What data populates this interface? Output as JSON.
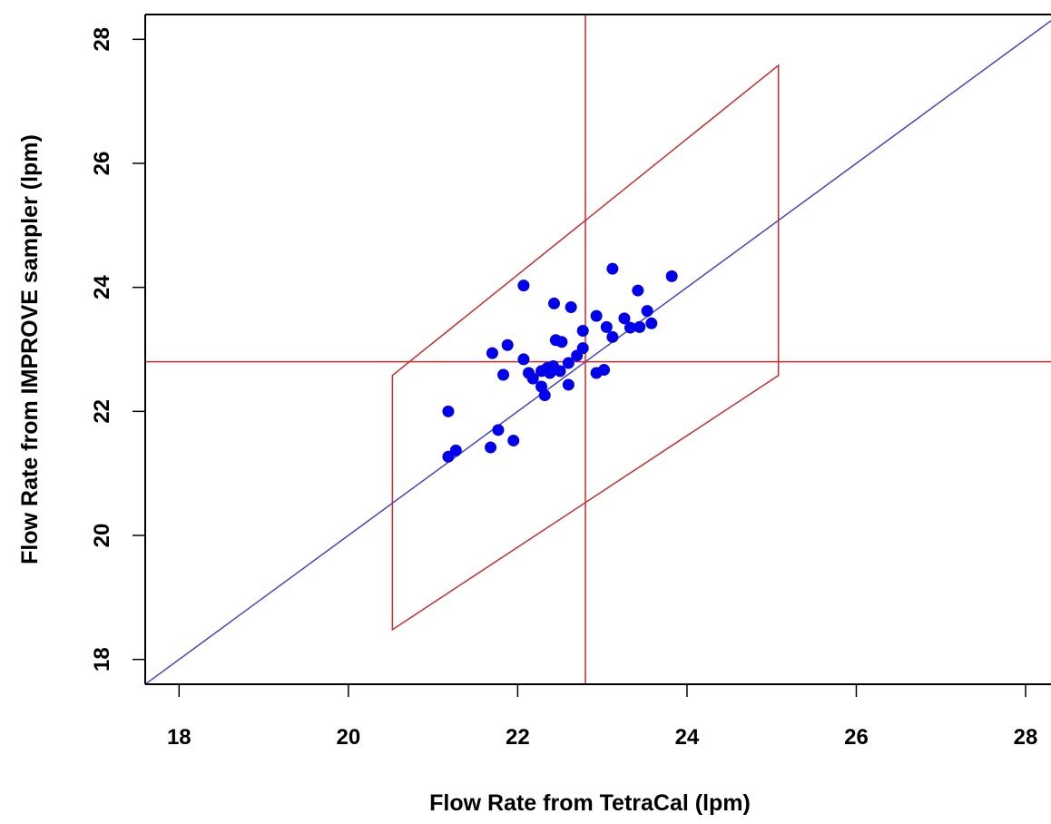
{
  "chart_data": {
    "type": "scatter",
    "title": "",
    "xlabel": "Flow Rate from TetraCal (lpm)",
    "ylabel": "Flow Rate from IMPROVE sampler (lpm)",
    "xlim": [
      17.6,
      28.3
    ],
    "ylim": [
      17.6,
      28.4
    ],
    "xticks": [
      18,
      20,
      22,
      24,
      26,
      28
    ],
    "yticks": [
      18,
      20,
      22,
      24,
      26,
      28
    ],
    "grid": false,
    "points": [
      [
        22.07,
        24.03
      ],
      [
        23.12,
        24.3
      ],
      [
        23.82,
        24.18
      ],
      [
        22.43,
        23.74
      ],
      [
        22.63,
        23.68
      ],
      [
        23.42,
        23.95
      ],
      [
        22.93,
        23.54
      ],
      [
        23.26,
        23.5
      ],
      [
        23.53,
        23.62
      ],
      [
        23.05,
        23.36
      ],
      [
        23.33,
        23.35
      ],
      [
        23.44,
        23.36
      ],
      [
        23.58,
        23.42
      ],
      [
        23.12,
        23.2
      ],
      [
        22.77,
        23.3
      ],
      [
        22.45,
        23.15
      ],
      [
        22.52,
        23.12
      ],
      [
        21.88,
        23.07
      ],
      [
        21.7,
        22.94
      ],
      [
        22.77,
        23.02
      ],
      [
        22.7,
        22.9
      ],
      [
        22.6,
        22.78
      ],
      [
        22.07,
        22.84
      ],
      [
        22.42,
        22.73
      ],
      [
        22.35,
        22.7
      ],
      [
        22.28,
        22.65
      ],
      [
        22.13,
        22.62
      ],
      [
        21.83,
        22.59
      ],
      [
        22.5,
        22.65
      ],
      [
        22.38,
        22.62
      ],
      [
        22.18,
        22.53
      ],
      [
        22.93,
        22.62
      ],
      [
        23.02,
        22.67
      ],
      [
        22.6,
        22.43
      ],
      [
        22.28,
        22.4
      ],
      [
        22.32,
        22.26
      ],
      [
        21.18,
        22.0
      ],
      [
        21.77,
        21.7
      ],
      [
        21.95,
        21.53
      ],
      [
        21.68,
        21.42
      ],
      [
        21.27,
        21.37
      ],
      [
        21.18,
        21.27
      ]
    ],
    "point_color": "#0000EE",
    "reference_lines": [
      {
        "kind": "identity",
        "slope": 1,
        "intercept": 0,
        "color": "#4545C8"
      },
      {
        "kind": "vertical",
        "x": 22.8,
        "color": "#CC2A2A"
      },
      {
        "kind": "horizontal",
        "y": 22.8,
        "color": "#CC2A2A"
      }
    ],
    "acceptance_region": {
      "color": "#CC2A2A",
      "vertices": [
        [
          20.52,
          22.58
        ],
        [
          25.08,
          27.58
        ],
        [
          25.08,
          22.58
        ],
        [
          20.52,
          18.48
        ]
      ]
    }
  }
}
